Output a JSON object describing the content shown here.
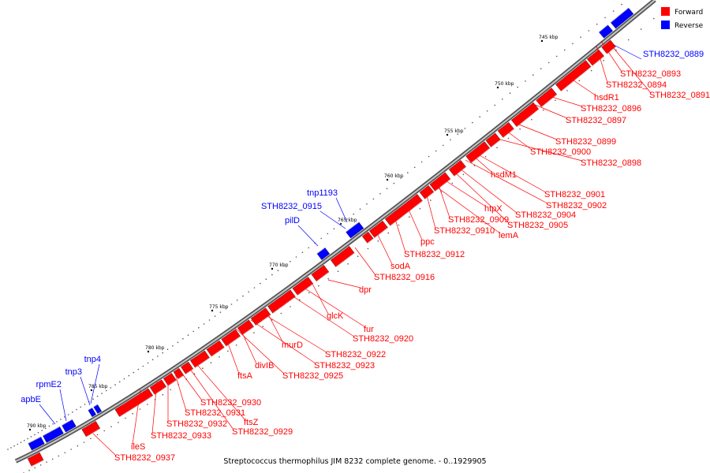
{
  "caption": "Streptococcus thermophilus JIM 8232 complete genome. - 0..1929905",
  "legend": [
    {
      "label": "Forward",
      "color": "#ff0000"
    },
    {
      "label": "Reverse",
      "color": "#0000ff"
    }
  ],
  "colors": {
    "forward": "#ff0000",
    "reverse": "#0000ff",
    "backbone": "#808080"
  },
  "ticks": [
    {
      "kbp": 745,
      "label": "745 kbp"
    },
    {
      "kbp": 750,
      "label": "750 kbp"
    },
    {
      "kbp": 755,
      "label": "755 kbp"
    },
    {
      "kbp": 760,
      "label": "760 kbp"
    },
    {
      "kbp": 765,
      "label": "765 kbp"
    },
    {
      "kbp": 770,
      "label": "770 kbp"
    },
    {
      "kbp": 775,
      "label": "775 kbp"
    },
    {
      "kbp": 780,
      "label": "780 kbp"
    },
    {
      "kbp": 785,
      "label": "785 kbp"
    },
    {
      "kbp": 790,
      "label": "790 kbp"
    }
  ],
  "forward_labels": [
    "STH8232_0893",
    "STH8232_0894",
    "STH8232_0891",
    "hsdR1",
    "STH8232_0896",
    "STH8232_0897",
    "STH8232_0899",
    "STH8232_0900",
    "STH8232_0898",
    "hsdM1",
    "STH8232_0901",
    "STH8232_0902",
    "htpX",
    "STH8232_0904",
    "STH8232_0909",
    "STH8232_0905",
    "STH8232_0910",
    "lemA",
    "ppc",
    "STH8232_0912",
    "sodA",
    "STH8232_0916",
    "dpr",
    "glcK",
    "fur",
    "STH8232_0920",
    "murD",
    "STH8232_0922",
    "STH8232_0923",
    "divIB",
    "STH8232_0925",
    "ftsA",
    "STH8232_0930",
    "STH8232_0931",
    "ftsZ",
    "STH8232_0932",
    "STH8232_0929",
    "STH8232_0933",
    "ileS",
    "STH8232_0937"
  ],
  "reverse_labels": [
    "STH8232_0889",
    "tnp1193",
    "STH8232_0915",
    "pilD",
    "tnp4",
    "tnp3",
    "rpmE2",
    "apbE"
  ]
}
